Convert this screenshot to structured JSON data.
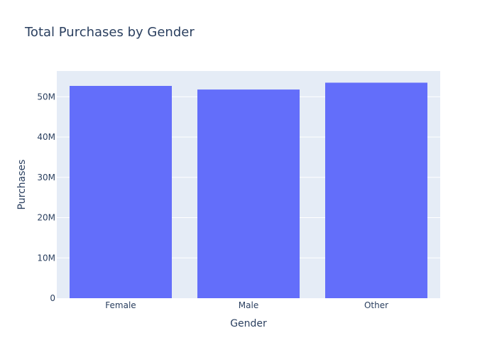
{
  "chart_data": {
    "type": "bar",
    "title": "Total Purchases by Gender",
    "xlabel": "Gender",
    "ylabel": "Purchases",
    "categories": [
      "Female",
      "Male",
      "Other"
    ],
    "values": [
      52700000,
      51800000,
      53500000
    ],
    "ylim": [
      0,
      56400000
    ],
    "yticks": [
      0,
      10000000,
      20000000,
      30000000,
      40000000,
      50000000
    ],
    "ytick_labels": [
      "0",
      "10M",
      "20M",
      "30M",
      "40M",
      "50M"
    ],
    "grid": true,
    "bar_color": "#636efa",
    "plot_bg": "#e5ecf6",
    "text_color": "#2a3f5f"
  }
}
